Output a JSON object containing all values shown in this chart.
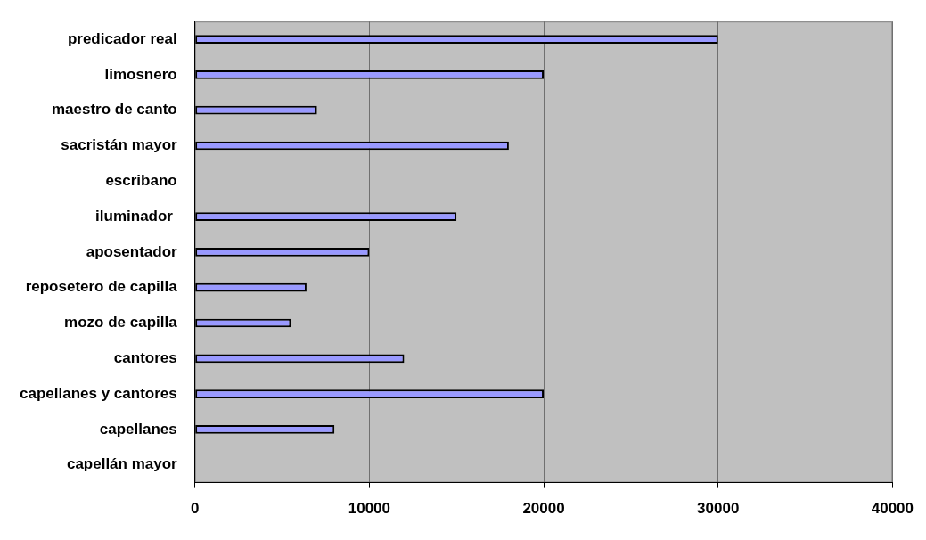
{
  "chart_data": {
    "type": "bar",
    "orientation": "horizontal",
    "categories": [
      "predicador real",
      "limosnero",
      "maestro de canto",
      "sacristán mayor",
      "escribano",
      "iluminador ",
      "aposentador",
      "reposetero de capilla",
      "mozo de capilla",
      "cantores",
      "capellanes y cantores",
      "capellanes",
      "capellán mayor"
    ],
    "values": [
      30000,
      20000,
      7000,
      18000,
      null,
      15000,
      10000,
      6400,
      5500,
      12000,
      20000,
      8000,
      null
    ],
    "color": "#9999ff",
    "xlim": [
      0,
      40000
    ],
    "xticks": [
      0,
      10000,
      20000,
      30000,
      40000
    ],
    "grid": "x",
    "legend": false
  }
}
